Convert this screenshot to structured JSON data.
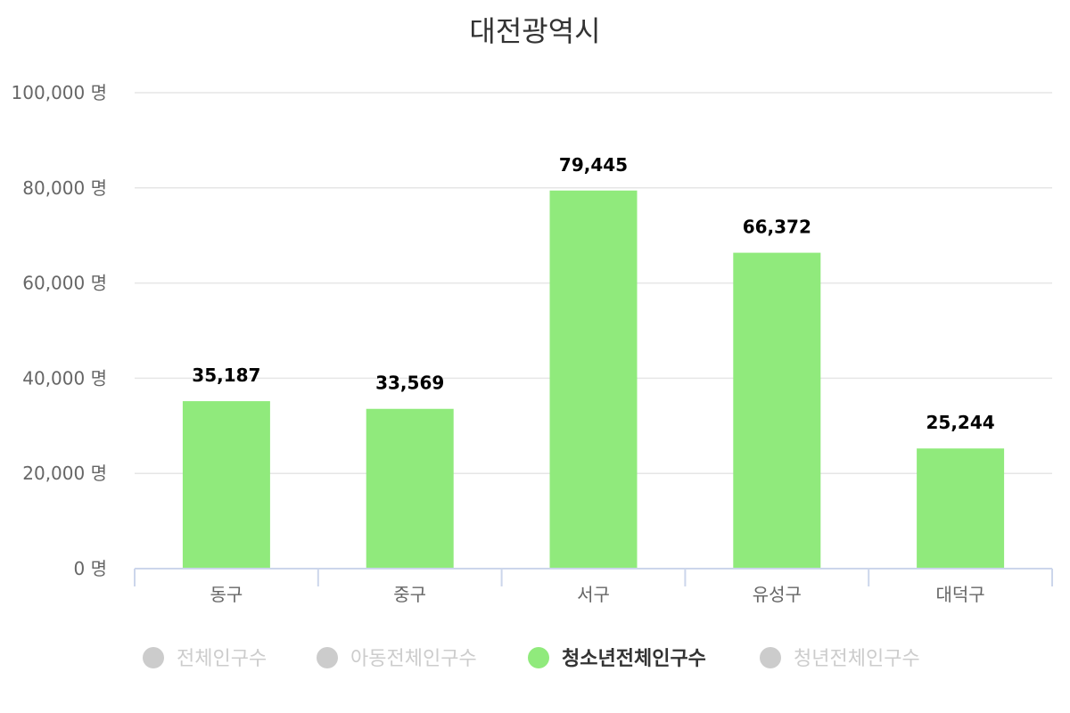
{
  "chart_data": {
    "type": "bar",
    "title": "대전광역시",
    "categories": [
      "동구",
      "중구",
      "서구",
      "유성구",
      "대덕구"
    ],
    "series": [
      {
        "name": "청소년전체인구수",
        "values": [
          35187,
          33569,
          79445,
          66372,
          25244
        ],
        "color": "#90ea7c",
        "visible": true
      }
    ],
    "data_labels": [
      "35,187",
      "33,569",
      "79,445",
      "66,372",
      "25,244"
    ],
    "ylim": [
      0,
      100000
    ],
    "yticks": [
      0,
      20000,
      40000,
      60000,
      80000,
      100000
    ],
    "ytick_labels": [
      "0 명",
      "20,000 명",
      "40,000 명",
      "60,000 명",
      "80,000 명",
      "100,000 명"
    ],
    "grid": true,
    "legend_position": "bottom",
    "legend": [
      {
        "label": "전체인구수",
        "active": false
      },
      {
        "label": "아동전체인구수",
        "active": false
      },
      {
        "label": "청소년전체인구수",
        "active": true
      },
      {
        "label": "청년전체인구수",
        "active": false
      }
    ],
    "colors": {
      "bar": "#90ea7c",
      "inactive": "#cccccc",
      "grid": "#e6e6e6",
      "axis": "#ccd6eb"
    }
  }
}
